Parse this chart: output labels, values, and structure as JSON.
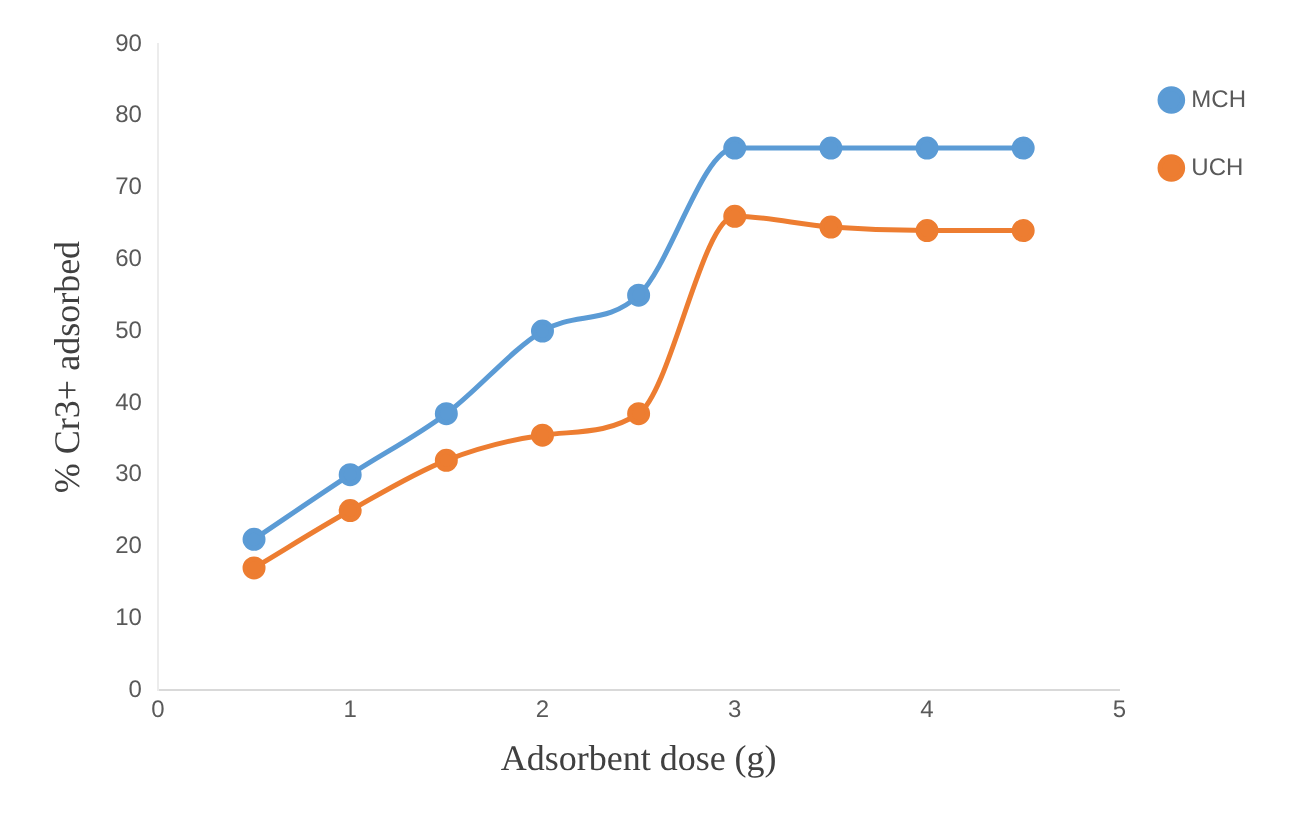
{
  "chart_data": {
    "type": "line",
    "xlabel": "Adsorbent dose (g)",
    "ylabel": "% Cr3+ adsorbed",
    "x": [
      0.5,
      1,
      1.5,
      2,
      2.5,
      3,
      3.5,
      4,
      4.5
    ],
    "series": [
      {
        "name": "MCH",
        "color": "#5b9bd5",
        "values": [
          21,
          30,
          38.5,
          50,
          55,
          75.5,
          75.5,
          75.5,
          75.5
        ]
      },
      {
        "name": "UCH",
        "color": "#ed7d31",
        "values": [
          17,
          25,
          32,
          35.5,
          38.5,
          66,
          64.5,
          64,
          64
        ]
      }
    ],
    "xlim": [
      0,
      5
    ],
    "xticks": [
      0,
      1,
      2,
      3,
      4,
      5
    ],
    "ylim": [
      0,
      90
    ],
    "yticks": [
      0,
      10,
      20,
      30,
      40,
      50,
      60,
      70,
      80,
      90
    ],
    "grid": false,
    "legend": "right",
    "marker": "circle",
    "line_style": "solid"
  }
}
